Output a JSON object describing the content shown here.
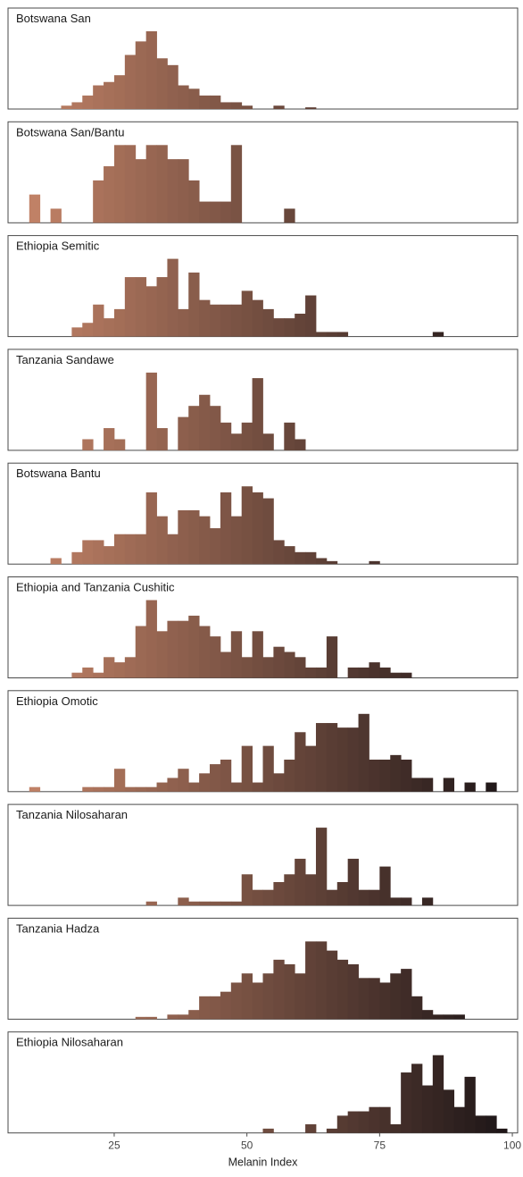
{
  "chart_data": {
    "type": "bar",
    "subtype": "faceted-histogram",
    "xlabel": "Melanin Index",
    "xlim": [
      5,
      101
    ],
    "xticks": [
      25,
      50,
      75,
      100
    ],
    "bin_width": 2,
    "color_scale": {
      "low": "#c9876a",
      "high": "#1b1416",
      "domain": [
        5,
        100
      ]
    },
    "panels": [
      {
        "name": "Botswana San",
        "bins": [
          [
            15,
            1
          ],
          [
            17,
            2
          ],
          [
            19,
            4
          ],
          [
            21,
            7
          ],
          [
            23,
            8
          ],
          [
            25,
            10
          ],
          [
            27,
            16
          ],
          [
            29,
            20
          ],
          [
            31,
            23
          ],
          [
            33,
            15
          ],
          [
            35,
            13
          ],
          [
            37,
            7
          ],
          [
            39,
            6
          ],
          [
            41,
            4
          ],
          [
            43,
            4
          ],
          [
            45,
            2
          ],
          [
            47,
            2
          ],
          [
            49,
            1
          ],
          [
            55,
            1
          ],
          [
            61,
            0.5
          ]
        ]
      },
      {
        "name": "Botswana San/Bantu",
        "bins": [
          [
            9,
            4
          ],
          [
            13,
            2
          ],
          [
            21,
            6
          ],
          [
            23,
            8
          ],
          [
            25,
            11
          ],
          [
            27,
            11
          ],
          [
            29,
            9
          ],
          [
            31,
            11
          ],
          [
            33,
            11
          ],
          [
            35,
            9
          ],
          [
            37,
            9
          ],
          [
            39,
            6
          ],
          [
            41,
            3
          ],
          [
            43,
            3
          ],
          [
            45,
            3
          ],
          [
            47,
            11
          ],
          [
            57,
            2
          ]
        ]
      },
      {
        "name": "Ethiopia Semitic",
        "bins": [
          [
            17,
            2
          ],
          [
            19,
            3
          ],
          [
            21,
            7
          ],
          [
            23,
            4
          ],
          [
            25,
            6
          ],
          [
            27,
            13
          ],
          [
            29,
            13
          ],
          [
            31,
            11
          ],
          [
            33,
            13
          ],
          [
            35,
            17
          ],
          [
            37,
            6
          ],
          [
            39,
            14
          ],
          [
            41,
            8
          ],
          [
            43,
            7
          ],
          [
            45,
            7
          ],
          [
            47,
            7
          ],
          [
            49,
            10
          ],
          [
            51,
            8
          ],
          [
            53,
            6
          ],
          [
            55,
            4
          ],
          [
            57,
            4
          ],
          [
            59,
            5
          ],
          [
            61,
            9
          ],
          [
            63,
            1
          ],
          [
            65,
            1
          ],
          [
            67,
            1
          ],
          [
            85,
            1
          ]
        ]
      },
      {
        "name": "Tanzania Sandawe",
        "bins": [
          [
            19,
            2
          ],
          [
            23,
            4
          ],
          [
            25,
            2
          ],
          [
            31,
            14
          ],
          [
            33,
            4
          ],
          [
            35,
            0
          ],
          [
            37,
            6
          ],
          [
            39,
            8
          ],
          [
            41,
            10
          ],
          [
            43,
            8
          ],
          [
            45,
            5
          ],
          [
            47,
            3
          ],
          [
            49,
            5
          ],
          [
            51,
            13
          ],
          [
            53,
            3
          ],
          [
            57,
            5
          ],
          [
            59,
            2
          ]
        ]
      },
      {
        "name": "Botswana Bantu",
        "bins": [
          [
            13,
            1
          ],
          [
            15,
            0
          ],
          [
            17,
            2
          ],
          [
            19,
            4
          ],
          [
            21,
            4
          ],
          [
            23,
            3
          ],
          [
            25,
            5
          ],
          [
            27,
            5
          ],
          [
            29,
            5
          ],
          [
            31,
            12
          ],
          [
            33,
            8
          ],
          [
            35,
            5
          ],
          [
            37,
            9
          ],
          [
            39,
            9
          ],
          [
            41,
            8
          ],
          [
            43,
            6
          ],
          [
            45,
            12
          ],
          [
            47,
            8
          ],
          [
            49,
            13
          ],
          [
            51,
            12
          ],
          [
            53,
            11
          ],
          [
            55,
            4
          ],
          [
            57,
            3
          ],
          [
            59,
            2
          ],
          [
            61,
            2
          ],
          [
            63,
            1
          ],
          [
            65,
            0.5
          ],
          [
            73,
            0.5
          ]
        ]
      },
      {
        "name": "Ethiopia and Tanzania Cushitic",
        "bins": [
          [
            17,
            1
          ],
          [
            19,
            2
          ],
          [
            21,
            1
          ],
          [
            23,
            4
          ],
          [
            25,
            3
          ],
          [
            27,
            4
          ],
          [
            29,
            10
          ],
          [
            31,
            15
          ],
          [
            33,
            9
          ],
          [
            35,
            11
          ],
          [
            37,
            11
          ],
          [
            39,
            12
          ],
          [
            41,
            10
          ],
          [
            43,
            8
          ],
          [
            45,
            5
          ],
          [
            47,
            9
          ],
          [
            49,
            4
          ],
          [
            51,
            9
          ],
          [
            53,
            4
          ],
          [
            55,
            6
          ],
          [
            57,
            5
          ],
          [
            59,
            4
          ],
          [
            61,
            2
          ],
          [
            63,
            2
          ],
          [
            65,
            8
          ],
          [
            67,
            0
          ],
          [
            69,
            2
          ],
          [
            71,
            2
          ],
          [
            73,
            3
          ],
          [
            75,
            2
          ],
          [
            77,
            1
          ],
          [
            79,
            1
          ]
        ]
      },
      {
        "name": "Ethiopia Omotic",
        "bins": [
          [
            9,
            1
          ],
          [
            19,
            1
          ],
          [
            21,
            1
          ],
          [
            23,
            1
          ],
          [
            25,
            5
          ],
          [
            27,
            1
          ],
          [
            29,
            1
          ],
          [
            31,
            1
          ],
          [
            33,
            2
          ],
          [
            35,
            3
          ],
          [
            37,
            5
          ],
          [
            39,
            2
          ],
          [
            41,
            4
          ],
          [
            43,
            6
          ],
          [
            45,
            7
          ],
          [
            47,
            2
          ],
          [
            49,
            10
          ],
          [
            51,
            2
          ],
          [
            53,
            10
          ],
          [
            55,
            4
          ],
          [
            57,
            7
          ],
          [
            59,
            13
          ],
          [
            61,
            10
          ],
          [
            63,
            15
          ],
          [
            65,
            15
          ],
          [
            67,
            14
          ],
          [
            69,
            14
          ],
          [
            71,
            17
          ],
          [
            73,
            7
          ],
          [
            75,
            7
          ],
          [
            77,
            8
          ],
          [
            79,
            7
          ],
          [
            81,
            3
          ],
          [
            83,
            3
          ],
          [
            87,
            3
          ],
          [
            91,
            2
          ],
          [
            95,
            2
          ]
        ]
      },
      {
        "name": "Tanzania Nilosaharan",
        "bins": [
          [
            31,
            0.5
          ],
          [
            37,
            1
          ],
          [
            39,
            0.5
          ],
          [
            41,
            0.5
          ],
          [
            43,
            0.5
          ],
          [
            45,
            0.5
          ],
          [
            47,
            0.5
          ],
          [
            49,
            4
          ],
          [
            51,
            2
          ],
          [
            53,
            2
          ],
          [
            55,
            3
          ],
          [
            57,
            4
          ],
          [
            59,
            6
          ],
          [
            61,
            4
          ],
          [
            63,
            10
          ],
          [
            65,
            2
          ],
          [
            67,
            3
          ],
          [
            69,
            6
          ],
          [
            71,
            2
          ],
          [
            73,
            2
          ],
          [
            75,
            5
          ],
          [
            77,
            1
          ],
          [
            79,
            1
          ],
          [
            83,
            1
          ]
        ]
      },
      {
        "name": "Tanzania Hadza",
        "bins": [
          [
            29,
            0.5
          ],
          [
            31,
            0.5
          ],
          [
            35,
            1
          ],
          [
            37,
            1
          ],
          [
            39,
            2
          ],
          [
            41,
            5
          ],
          [
            43,
            5
          ],
          [
            45,
            6
          ],
          [
            47,
            8
          ],
          [
            49,
            10
          ],
          [
            51,
            8
          ],
          [
            53,
            10
          ],
          [
            55,
            13
          ],
          [
            57,
            12
          ],
          [
            59,
            10
          ],
          [
            61,
            17
          ],
          [
            63,
            17
          ],
          [
            65,
            15
          ],
          [
            67,
            13
          ],
          [
            69,
            12
          ],
          [
            71,
            9
          ],
          [
            73,
            9
          ],
          [
            75,
            8
          ],
          [
            77,
            10
          ],
          [
            79,
            11
          ],
          [
            81,
            5
          ],
          [
            83,
            2
          ],
          [
            85,
            1
          ],
          [
            87,
            1
          ],
          [
            89,
            1
          ]
        ]
      },
      {
        "name": "Ethiopia Nilosaharan",
        "bins": [
          [
            53,
            1
          ],
          [
            61,
            2
          ],
          [
            65,
            1
          ],
          [
            67,
            4
          ],
          [
            69,
            5
          ],
          [
            71,
            5
          ],
          [
            73,
            6
          ],
          [
            75,
            6
          ],
          [
            77,
            2
          ],
          [
            79,
            14
          ],
          [
            81,
            16
          ],
          [
            83,
            11
          ],
          [
            85,
            18
          ],
          [
            87,
            10
          ],
          [
            89,
            6
          ],
          [
            91,
            13
          ],
          [
            93,
            4
          ],
          [
            95,
            4
          ],
          [
            97,
            1
          ]
        ]
      }
    ]
  }
}
